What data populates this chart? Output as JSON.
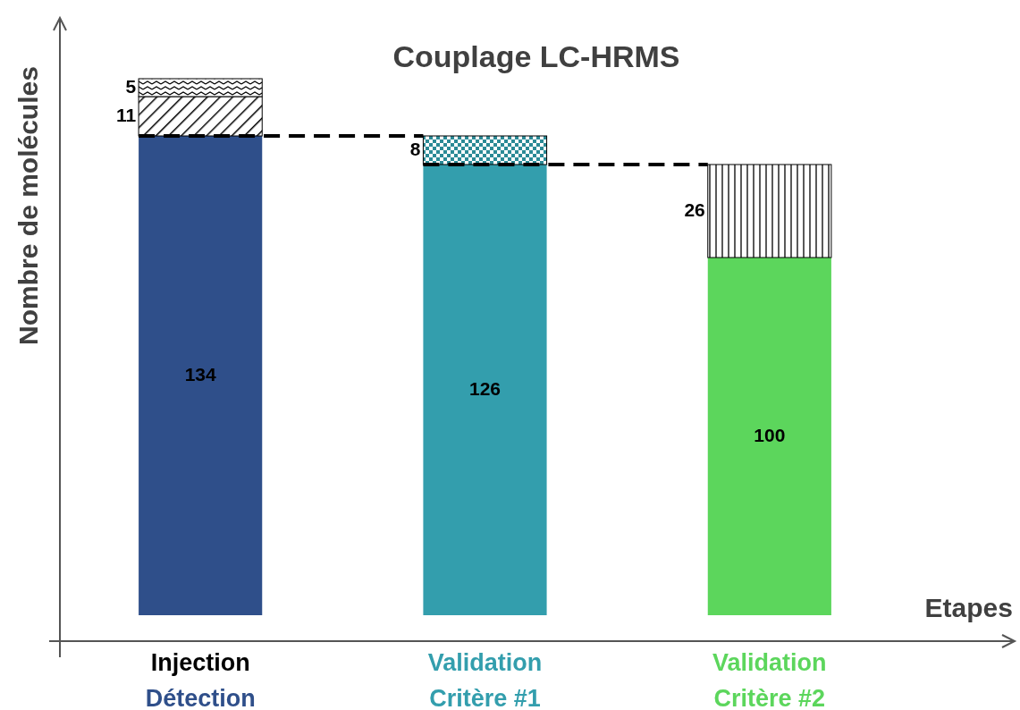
{
  "chart_data": {
    "type": "bar",
    "title": "Couplage LC-HRMS",
    "xlabel": "Etapes",
    "ylabel": "Nombre de molécules",
    "categories": [
      "Injection\nDétection",
      "Validation\nCritère #1",
      "Validation\nCritère #2"
    ],
    "stacked": true,
    "data_labels": true,
    "ylim": [
      0,
      167
    ],
    "tick_labels": "x",
    "series": [
      {
        "colors": [
          "#2f4f8a",
          "#339ead",
          "#5cd65c"
        ],
        "values": [
          134,
          126,
          100
        ]
      },
      {
        "color": "#000000",
        "values": [
          11,
          8,
          26
        ]
      },
      {
        "color": "#000000",
        "values": [
          5,
          null,
          null
        ]
      }
    ],
    "ref_lines": [
      {
        "axis": "y",
        "value": 134,
        "line_style": "dashed",
        "color": "#000000"
      },
      {
        "axis": "y",
        "value": 126,
        "line_style": "dashed",
        "color": "#000000"
      }
    ]
  }
}
